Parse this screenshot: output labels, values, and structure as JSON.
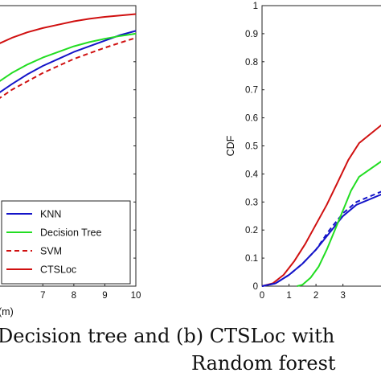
{
  "chart_data": [
    {
      "type": "line",
      "xlabel": "(m)",
      "xlim": [
        5.1,
        10
      ],
      "ylim": [
        0,
        1
      ],
      "x_ticks": [
        "7",
        "8",
        "9",
        "10"
      ],
      "grid": false,
      "legend_placement": "bottom-right",
      "series": [
        {
          "name": "KNN",
          "color": "#1414c8",
          "dash": "solid",
          "x": [
            5.1,
            5.6,
            6.0,
            6.5,
            7.0,
            7.5,
            8.0,
            8.5,
            9.0,
            9.5,
            10.0
          ],
          "y": [
            0.66,
            0.69,
            0.72,
            0.755,
            0.785,
            0.81,
            0.835,
            0.855,
            0.875,
            0.895,
            0.91
          ]
        },
        {
          "name": "Decision Tree",
          "color": "#22dd22",
          "dash": "solid",
          "x": [
            5.1,
            5.6,
            6.0,
            6.5,
            7.0,
            7.5,
            8.0,
            8.5,
            9.0,
            9.5,
            10.0
          ],
          "y": [
            0.695,
            0.73,
            0.76,
            0.79,
            0.815,
            0.835,
            0.855,
            0.87,
            0.882,
            0.892,
            0.9
          ]
        },
        {
          "name": "SVM",
          "color": "#d01010",
          "dash": "dashed",
          "x": [
            5.1,
            5.6,
            6.0,
            6.5,
            7.0,
            7.5,
            8.0,
            8.5,
            9.0,
            9.5,
            10.0
          ],
          "y": [
            0.635,
            0.67,
            0.7,
            0.73,
            0.76,
            0.785,
            0.81,
            0.83,
            0.85,
            0.868,
            0.885
          ]
        },
        {
          "name": "CTSLoc",
          "color": "#d01010",
          "dash": "solid",
          "x": [
            5.1,
            5.6,
            6.0,
            6.5,
            7.0,
            7.5,
            8.0,
            8.5,
            9.0,
            9.5,
            10.0
          ],
          "y": [
            0.835,
            0.865,
            0.885,
            0.905,
            0.92,
            0.932,
            0.944,
            0.953,
            0.96,
            0.965,
            0.97
          ]
        }
      ]
    },
    {
      "type": "line",
      "ylabel": "CDF",
      "xlim": [
        0,
        4.5
      ],
      "ylim": [
        0,
        1
      ],
      "x_ticks": [
        "0",
        "1",
        "2",
        "3"
      ],
      "y_ticks": [
        "0",
        "0.1",
        "0.2",
        "0.3",
        "0.4",
        "0.5",
        "0.6",
        "0.7",
        "0.8",
        "0.9",
        "1"
      ],
      "grid": false,
      "series": [
        {
          "color": "#d01010",
          "dash": "solid",
          "x": [
            0,
            0.4,
            0.8,
            1.2,
            1.6,
            2.0,
            2.4,
            2.8,
            3.2,
            3.6,
            4.5
          ],
          "y": [
            0,
            0.01,
            0.04,
            0.09,
            0.15,
            0.22,
            0.29,
            0.37,
            0.45,
            0.51,
            0.58
          ]
        },
        {
          "color": "#1414c8",
          "dash": "solid",
          "x": [
            0,
            0.5,
            1.0,
            1.5,
            2.0,
            2.5,
            3.0,
            3.5,
            4.5
          ],
          "y": [
            0,
            0.01,
            0.04,
            0.08,
            0.13,
            0.19,
            0.25,
            0.29,
            0.33
          ]
        },
        {
          "color": "#1414c8",
          "dash": "dashed",
          "x": [
            0,
            0.5,
            1.0,
            1.5,
            2.0,
            2.5,
            3.0,
            3.5,
            4.5
          ],
          "y": [
            0,
            0.01,
            0.04,
            0.08,
            0.13,
            0.2,
            0.26,
            0.3,
            0.34
          ]
        },
        {
          "color": "#22dd22",
          "dash": "solid",
          "x": [
            1.3,
            1.5,
            1.8,
            2.1,
            2.4,
            2.7,
            3.0,
            3.3,
            3.6,
            4.5
          ],
          "y": [
            0,
            0.005,
            0.03,
            0.07,
            0.13,
            0.2,
            0.27,
            0.34,
            0.39,
            0.45
          ]
        }
      ]
    }
  ],
  "caption": {
    "line1": "Decision  tree  and (b) CTSLoc with",
    "line2": "Random forest"
  }
}
